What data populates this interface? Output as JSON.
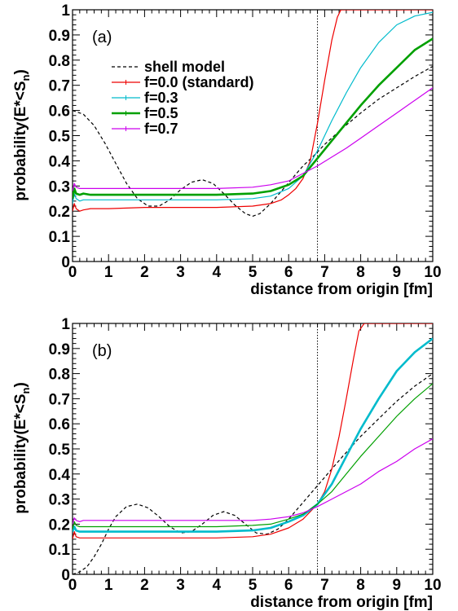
{
  "chart_data": [
    {
      "type": "line",
      "panel_label": "(a)",
      "xlabel": "distance from origin [fm]",
      "ylabel_main": "probability(E*<S",
      "ylabel_sub": "n",
      "ylabel_tail": ")",
      "xlim": [
        0,
        10
      ],
      "ylim": [
        0,
        1
      ],
      "xticks": [
        "0",
        "1",
        "2",
        "3",
        "4",
        "5",
        "6",
        "7",
        "8",
        "9",
        "10"
      ],
      "yticks": [
        "0",
        "0.1",
        "0.2",
        "0.3",
        "0.4",
        "0.5",
        "0.6",
        "0.7",
        "0.8",
        "0.9",
        "1"
      ],
      "vline_x": 6.8,
      "legend": {
        "placement": "upper-middle"
      },
      "series": [
        {
          "name": "shell model",
          "color": "#000000",
          "dash": true,
          "width": 1.2,
          "x": [
            0,
            0.3,
            0.6,
            0.9,
            1.2,
            1.5,
            1.8,
            2.1,
            2.4,
            2.7,
            3.0,
            3.3,
            3.6,
            3.9,
            4.2,
            4.5,
            4.8,
            5.0,
            5.2,
            5.5,
            5.8,
            6.1,
            6.4,
            6.7,
            7.0,
            7.5,
            8.0,
            8.5,
            9.0,
            9.5,
            10.0
          ],
          "y": [
            0.6,
            0.585,
            0.54,
            0.47,
            0.39,
            0.31,
            0.25,
            0.22,
            0.22,
            0.245,
            0.285,
            0.315,
            0.325,
            0.31,
            0.27,
            0.225,
            0.19,
            0.18,
            0.19,
            0.23,
            0.28,
            0.33,
            0.38,
            0.42,
            0.465,
            0.53,
            0.59,
            0.645,
            0.69,
            0.735,
            0.775
          ]
        },
        {
          "name": "f=0.0 (standard)",
          "color": "#ee0000",
          "dash": false,
          "width": 1.2,
          "x": [
            0,
            0.05,
            0.1,
            0.2,
            0.3,
            0.5,
            1,
            2,
            3,
            4,
            5,
            5.5,
            5.8,
            6.0,
            6.2,
            6.4,
            6.6,
            6.8,
            7.0,
            7.2,
            7.35,
            7.45,
            8,
            9,
            10
          ],
          "y": [
            0.2,
            0.23,
            0.21,
            0.2,
            0.205,
            0.21,
            0.21,
            0.215,
            0.215,
            0.215,
            0.22,
            0.23,
            0.245,
            0.265,
            0.29,
            0.33,
            0.4,
            0.55,
            0.72,
            0.88,
            0.97,
            1.0,
            1.0,
            1.0,
            1.0
          ]
        },
        {
          "name": "f=0.3",
          "color": "#00bbcc",
          "dash": false,
          "width": 1.2,
          "x": [
            0,
            0.05,
            0.1,
            0.2,
            0.3,
            0.5,
            1,
            2,
            3,
            4,
            5,
            5.5,
            6.0,
            6.4,
            6.8,
            7.2,
            7.6,
            8.0,
            8.5,
            9.0,
            9.5,
            10
          ],
          "y": [
            0.23,
            0.27,
            0.25,
            0.24,
            0.245,
            0.245,
            0.245,
            0.245,
            0.245,
            0.245,
            0.25,
            0.26,
            0.29,
            0.34,
            0.44,
            0.56,
            0.67,
            0.77,
            0.87,
            0.94,
            0.975,
            0.99
          ]
        },
        {
          "name": "f=0.5",
          "color": "#00a000",
          "dash": false,
          "width": 2.6,
          "x": [
            0,
            0.05,
            0.1,
            0.2,
            0.3,
            0.5,
            1,
            2,
            3,
            4,
            5,
            5.5,
            6.0,
            6.4,
            6.8,
            7.2,
            7.6,
            8.0,
            8.5,
            9.0,
            9.5,
            10
          ],
          "y": [
            0.25,
            0.29,
            0.27,
            0.265,
            0.27,
            0.265,
            0.265,
            0.265,
            0.265,
            0.265,
            0.27,
            0.28,
            0.305,
            0.34,
            0.41,
            0.48,
            0.55,
            0.62,
            0.7,
            0.77,
            0.84,
            0.885
          ]
        },
        {
          "name": "f=0.7",
          "color": "#cc00ee",
          "dash": false,
          "width": 1.2,
          "x": [
            0,
            0.05,
            0.1,
            0.2,
            0.3,
            0.5,
            1,
            2,
            3,
            4,
            5,
            5.5,
            6.0,
            6.4,
            6.8,
            7.2,
            7.6,
            8.0,
            8.5,
            9.0,
            9.5,
            10
          ],
          "y": [
            0.28,
            0.31,
            0.295,
            0.29,
            0.29,
            0.29,
            0.29,
            0.29,
            0.29,
            0.29,
            0.295,
            0.305,
            0.32,
            0.35,
            0.38,
            0.415,
            0.45,
            0.49,
            0.54,
            0.59,
            0.64,
            0.69
          ]
        }
      ]
    },
    {
      "type": "line",
      "panel_label": "(b)",
      "xlabel": "distance from origin [fm]",
      "ylabel_main": "probability(E*<S",
      "ylabel_sub": "n",
      "ylabel_tail": ")",
      "xlim": [
        0,
        10
      ],
      "ylim": [
        0,
        1
      ],
      "xticks": [
        "0",
        "1",
        "2",
        "3",
        "4",
        "5",
        "6",
        "7",
        "8",
        "9",
        "10"
      ],
      "yticks": [
        "0",
        "0.1",
        "0.2",
        "0.3",
        "0.4",
        "0.5",
        "0.6",
        "0.7",
        "0.8",
        "0.9",
        "1"
      ],
      "vline_x": 6.8,
      "series": [
        {
          "name": "shell model",
          "color": "#000000",
          "dash": true,
          "width": 1.2,
          "x": [
            0,
            0.2,
            0.4,
            0.6,
            0.8,
            1.0,
            1.2,
            1.5,
            1.8,
            2.1,
            2.4,
            2.7,
            3.0,
            3.3,
            3.6,
            3.9,
            4.2,
            4.5,
            4.8,
            5.1,
            5.4,
            5.7,
            6.0,
            6.3,
            6.6,
            6.9,
            7.2,
            7.5,
            8.0,
            8.5,
            9.0,
            9.5,
            10.0
          ],
          "y": [
            0.0,
            0.01,
            0.03,
            0.07,
            0.12,
            0.18,
            0.23,
            0.27,
            0.28,
            0.265,
            0.23,
            0.19,
            0.165,
            0.17,
            0.2,
            0.235,
            0.25,
            0.235,
            0.2,
            0.165,
            0.16,
            0.18,
            0.22,
            0.27,
            0.32,
            0.37,
            0.42,
            0.47,
            0.55,
            0.62,
            0.69,
            0.75,
            0.8
          ]
        },
        {
          "name": "f=0.0 (standard)",
          "color": "#ee0000",
          "dash": false,
          "width": 1.2,
          "x": [
            0,
            0.05,
            0.1,
            0.2,
            0.3,
            0.5,
            1,
            2,
            3,
            4,
            5,
            5.5,
            6.0,
            6.4,
            6.8,
            7.0,
            7.2,
            7.4,
            7.6,
            7.8,
            7.95,
            8.1,
            9,
            10
          ],
          "y": [
            0.14,
            0.17,
            0.15,
            0.145,
            0.145,
            0.145,
            0.145,
            0.145,
            0.145,
            0.145,
            0.15,
            0.16,
            0.185,
            0.22,
            0.28,
            0.33,
            0.42,
            0.55,
            0.7,
            0.86,
            0.97,
            1.0,
            1.0,
            1.0
          ]
        },
        {
          "name": "f=0.3",
          "color": "#00bbcc",
          "dash": false,
          "width": 2.6,
          "x": [
            0,
            0.05,
            0.1,
            0.2,
            0.3,
            0.5,
            1,
            2,
            3,
            4,
            5,
            5.5,
            6.0,
            6.4,
            6.8,
            7.2,
            7.6,
            8.0,
            8.5,
            9.0,
            9.5,
            10
          ],
          "y": [
            0.17,
            0.19,
            0.175,
            0.17,
            0.17,
            0.17,
            0.17,
            0.17,
            0.17,
            0.17,
            0.175,
            0.185,
            0.21,
            0.235,
            0.28,
            0.36,
            0.47,
            0.58,
            0.7,
            0.81,
            0.885,
            0.94
          ]
        },
        {
          "name": "f=0.5",
          "color": "#00a000",
          "dash": false,
          "width": 1.2,
          "x": [
            0,
            0.05,
            0.1,
            0.2,
            0.3,
            0.5,
            1,
            2,
            3,
            4,
            5,
            5.5,
            6.0,
            6.4,
            6.8,
            7.2,
            7.6,
            8.0,
            8.5,
            9.0,
            9.5,
            10
          ],
          "y": [
            0.18,
            0.21,
            0.195,
            0.19,
            0.19,
            0.19,
            0.19,
            0.19,
            0.19,
            0.19,
            0.195,
            0.2,
            0.22,
            0.24,
            0.28,
            0.33,
            0.4,
            0.47,
            0.55,
            0.63,
            0.7,
            0.76
          ]
        },
        {
          "name": "f=0.7",
          "color": "#cc00ee",
          "dash": false,
          "width": 1.2,
          "x": [
            0,
            0.05,
            0.1,
            0.2,
            0.3,
            0.5,
            1,
            2,
            3,
            4,
            5,
            5.5,
            6.0,
            6.4,
            6.8,
            7.2,
            7.6,
            8.0,
            8.5,
            9.0,
            9.5,
            10
          ],
          "y": [
            0.2,
            0.225,
            0.215,
            0.21,
            0.215,
            0.215,
            0.215,
            0.215,
            0.215,
            0.215,
            0.215,
            0.22,
            0.23,
            0.245,
            0.27,
            0.3,
            0.33,
            0.36,
            0.41,
            0.45,
            0.5,
            0.54
          ]
        }
      ]
    }
  ]
}
